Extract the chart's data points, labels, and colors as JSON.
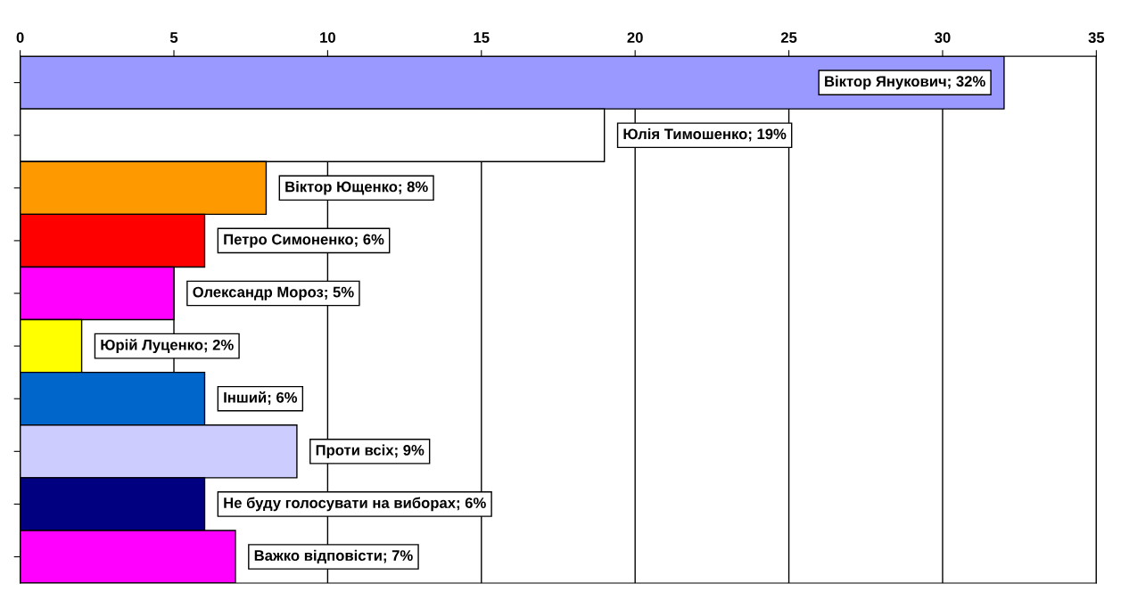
{
  "chart_data": {
    "type": "bar",
    "orientation": "horizontal",
    "categories": [
      null,
      null,
      null,
      null,
      null,
      null,
      null,
      null,
      null,
      null
    ],
    "values": [
      32,
      19,
      8,
      6,
      5,
      2,
      6,
      9,
      6,
      7
    ],
    "colors": [
      "#9999ff",
      "#ffffff",
      "#ff9900",
      "#ff0000",
      "#ff00ff",
      "#ffff00",
      "#0066cc",
      "#ccccff",
      "#000080",
      "#ff00ff"
    ],
    "value_labels": [
      "Віктор Янукович; 32%",
      "Юлія Тимошенко; 19%",
      "Віктор Ющенко; 8%",
      "Петро Симоненко; 6%",
      "Олександр Мороз; 5%",
      "Юрій Луценко; 2%",
      "Інший; 6%",
      "Проти всіх; 9%",
      "Не буду голосувати на виборах; 6%",
      "Важко відповісти; 7%"
    ],
    "xlim": [
      0,
      35
    ],
    "xticks": [
      0,
      5,
      10,
      15,
      20,
      25,
      30,
      35
    ],
    "grid": "x",
    "tick_labels": "x"
  }
}
